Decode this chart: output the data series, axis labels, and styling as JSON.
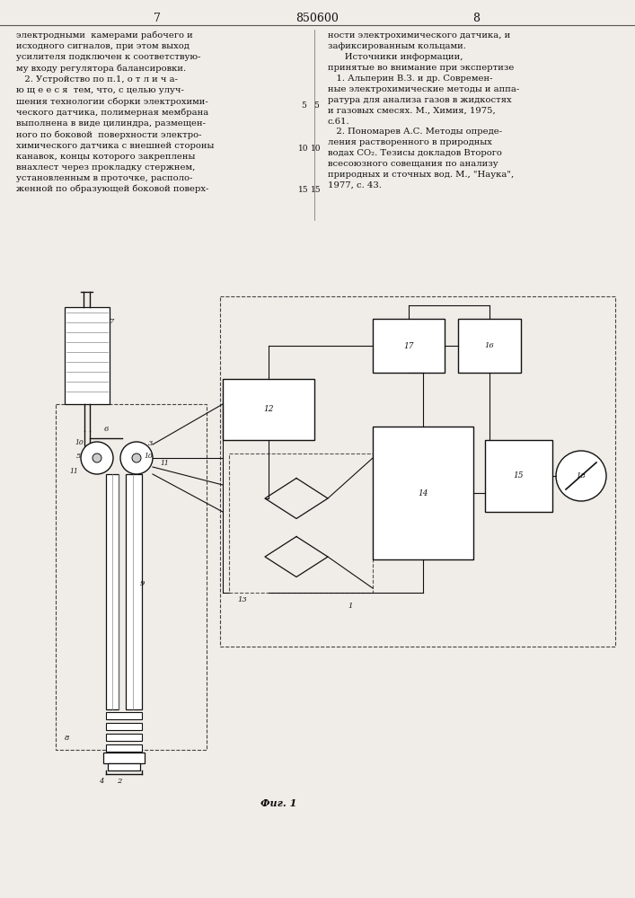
{
  "page_width": 7.07,
  "page_height": 10.0,
  "bg_color": "#f0ede8",
  "text_color": "#111111",
  "header_7": "7",
  "header_850600": "850600",
  "header_8": "8",
  "left_col_text": "электродными  камерами рабочего и\nисходного сигналов, при этом выход\nусилителя подключен к соответствую-\nму входу регулятора балансировки.\n   2. Устройство по п.1, о т л и ч а-\nю щ е е с я  тем, что, с целью улуч-\nшения технологии сборки электрохими-\nческого датчика, полимерная мембрана\nвыполнена в виде цилиндра, размещен-\nного по боковой  поверхности электро-\nхимического датчика с внешней стороны\nканавок, концы которого закреплены\nвнахлест через прокладку стержнем,\nустановленным в проточке, располо-\nженной по образующей боковой поверх-",
  "right_col_text": "ности электрохимического датчика, и\nзафиксированным кольцами.\n      Источники информации,\nпринятые во внимание при экспертизе\n   1. Альперин В.З. и др. Современ-\nные электрохимические методы и аппа-\nратура для анализа газов в жидкостях\nи газовых смесях. М., Химия, 1975,\nс.61.\n   2. Пономарев А.С. Методы опреде-\nления растворенного в природных\nводах СО₂. Тезисы докладов Второго\nвсесоюзного совещания по анализу\nприродных и сточных вод. М., \"Наука\",\n1977, с. 43.",
  "line_numbers_left": [
    [
      0.844,
      "5"
    ],
    [
      0.8,
      "10"
    ],
    [
      0.755,
      "15"
    ]
  ],
  "line_numbers_right": [
    [
      0.844,
      "5"
    ],
    [
      0.8,
      "10"
    ],
    [
      0.755,
      "15"
    ]
  ],
  "fig_caption": "Фиг. 1"
}
